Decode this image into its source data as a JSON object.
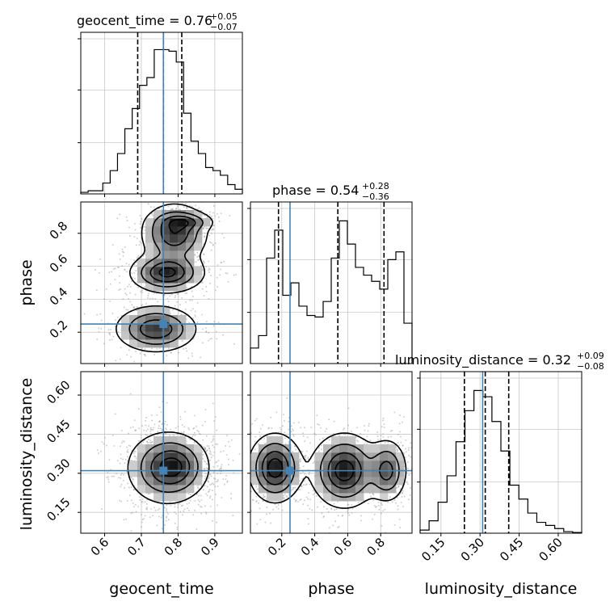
{
  "chart_data": {
    "type": "corner",
    "parameters": [
      "geocent_time",
      "phase",
      "luminosity_distance"
    ],
    "injection": {
      "geocent_time": 0.76,
      "phase": 0.25,
      "luminosity_distance": 0.31
    },
    "colors": {
      "injection": "#4682b4",
      "hist": "#000000",
      "grid": "#c8c8c8",
      "samples": "#9a9a9a"
    },
    "grid": true,
    "titles": [
      {
        "param": "geocent_time",
        "main": "geocent_time = 0.76",
        "plus": "+0.05",
        "minus": "−0.07"
      },
      {
        "param": "phase",
        "main": "phase = 0.54",
        "plus": "+0.28",
        "minus": "−0.36"
      },
      {
        "param": "luminosity_distance",
        "main": "luminosity_distance = 0.32",
        "plus": "+0.09",
        "minus": "−0.08"
      }
    ],
    "axis_labels": {
      "x": [
        "geocent_time",
        "phase",
        "luminosity_distance"
      ],
      "y": [
        "phase",
        "luminosity_distance"
      ]
    },
    "ranges": {
      "geocent_time": [
        0.535,
        0.975
      ],
      "phase": [
        0.01,
        0.99
      ],
      "luminosity_distance": [
        0.07,
        0.69
      ]
    },
    "ticks": {
      "geocent_time": {
        "values": [
          0.6,
          0.7,
          0.8,
          0.9
        ],
        "labels": [
          "0.6",
          "0.7",
          "0.8",
          "0.9"
        ]
      },
      "phase": {
        "values": [
          0.2,
          0.4,
          0.6,
          0.8
        ],
        "labels": [
          "0.2",
          "0.4",
          "0.6",
          "0.8"
        ]
      },
      "luminosity_distance": {
        "values": [
          0.15,
          0.3,
          0.45,
          0.6
        ],
        "labels": [
          "0.15",
          "0.30",
          "0.45",
          "0.60"
        ]
      }
    },
    "diag_y_ticks": [
      0.33,
      0.67,
      1.0
    ],
    "histograms": {
      "geocent_time": {
        "range": [
          0.535,
          0.975
        ],
        "quantiles": [
          0.69,
          0.76,
          0.81
        ],
        "counts": [
          0.01,
          0.02,
          0.02,
          0.07,
          0.15,
          0.26,
          0.42,
          0.55,
          0.7,
          0.75,
          0.93,
          0.93,
          0.92,
          0.85,
          0.52,
          0.34,
          0.26,
          0.17,
          0.15,
          0.12,
          0.06,
          0.03
        ]
      },
      "phase": {
        "range": [
          0.01,
          0.99
        ],
        "quantiles": [
          0.18,
          0.54,
          0.82
        ],
        "counts": [
          0.1,
          0.18,
          0.68,
          0.86,
          0.44,
          0.52,
          0.37,
          0.31,
          0.3,
          0.4,
          0.68,
          0.92,
          0.77,
          0.62,
          0.57,
          0.53,
          0.48,
          0.67,
          0.72,
          0.26
        ]
      },
      "luminosity_distance": {
        "range": [
          0.07,
          0.69
        ],
        "quantiles": [
          0.24,
          0.32,
          0.41
        ],
        "counts": [
          0.02,
          0.08,
          0.2,
          0.37,
          0.59,
          0.79,
          0.92,
          0.88,
          0.72,
          0.53,
          0.31,
          0.22,
          0.13,
          0.07,
          0.05,
          0.03,
          0.01,
          0.005
        ]
      }
    },
    "density_blobs": {
      "phase_vs_geocent_time": [
        {
          "cx": 0.79,
          "cy": 0.8,
          "sx": 0.045,
          "sy": 0.09,
          "w": 1.0
        },
        {
          "cx": 0.77,
          "cy": 0.56,
          "sx": 0.05,
          "sy": 0.06,
          "w": 1.1
        },
        {
          "cx": 0.74,
          "cy": 0.22,
          "sx": 0.055,
          "sy": 0.07,
          "w": 1.0
        },
        {
          "cx": 0.82,
          "cy": 0.87,
          "sx": 0.04,
          "sy": 0.03,
          "w": 0.5
        }
      ],
      "luminosity_distance_vs_geocent_time": [
        {
          "cx": 0.77,
          "cy": 0.32,
          "sx": 0.055,
          "sy": 0.07,
          "w": 1.0
        },
        {
          "cx": 0.8,
          "cy": 0.33,
          "sx": 0.04,
          "sy": 0.05,
          "w": 0.35
        }
      ],
      "luminosity_distance_vs_phase": [
        {
          "cx": 0.16,
          "cy": 0.32,
          "sx": 0.08,
          "sy": 0.065,
          "w": 1.0
        },
        {
          "cx": 0.58,
          "cy": 0.31,
          "sx": 0.1,
          "sy": 0.07,
          "w": 1.0
        },
        {
          "cx": 0.84,
          "cy": 0.31,
          "sx": 0.06,
          "sy": 0.06,
          "w": 0.7
        }
      ]
    }
  }
}
